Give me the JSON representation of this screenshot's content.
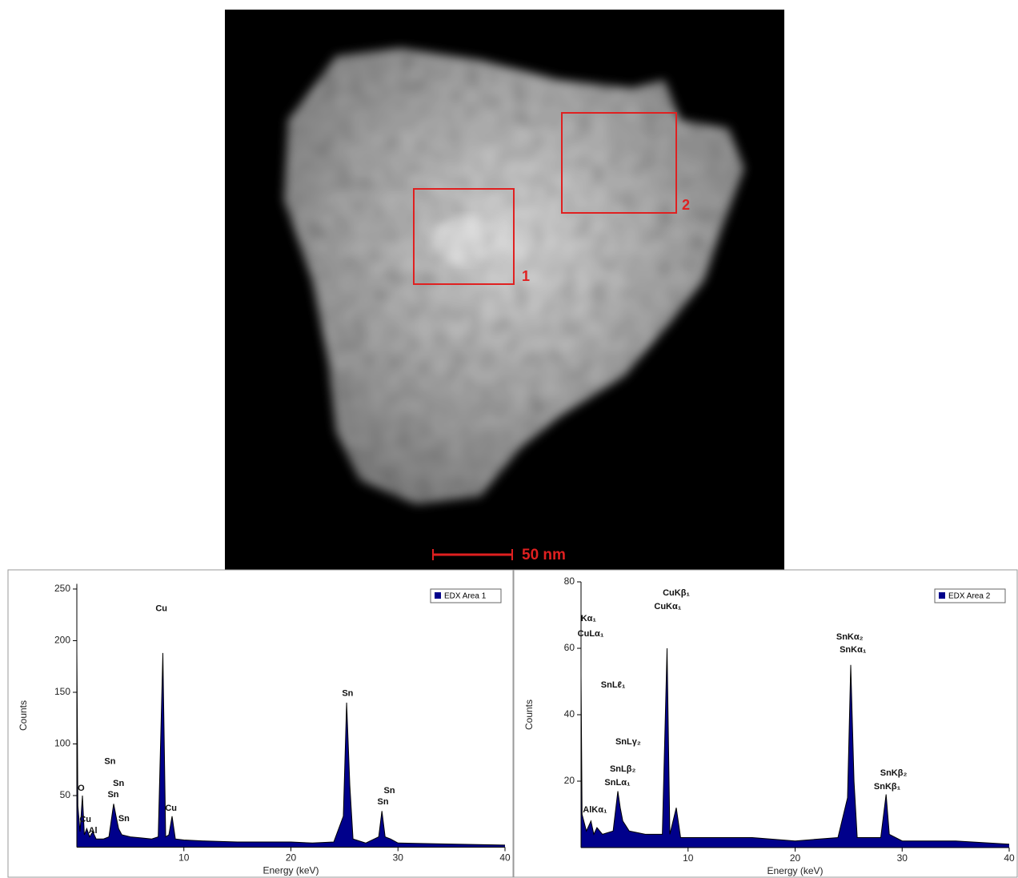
{
  "image": {
    "regions": [
      "1",
      "2"
    ],
    "scale_bar": "50 nm"
  },
  "chart_data": [
    {
      "type": "area",
      "xlabel": "Energy (keV)",
      "ylabel": "Counts",
      "x": [
        0.0,
        0.1,
        0.3,
        0.52,
        0.7,
        0.93,
        1.2,
        1.49,
        1.8,
        2.5,
        3.0,
        3.44,
        3.66,
        3.9,
        4.2,
        5,
        6,
        7,
        7.6,
        8.04,
        8.3,
        8.6,
        8.9,
        9.2,
        10,
        12,
        15,
        18,
        20,
        22,
        24,
        24.9,
        25.2,
        25.5,
        25.8,
        27,
        28.2,
        28.5,
        28.8,
        29.3,
        30,
        35,
        40
      ],
      "series": [
        {
          "name": "EDX Area 1",
          "color": "#00008b",
          "values": [
            190,
            40,
            15,
            50,
            12,
            18,
            10,
            15,
            8,
            8,
            10,
            42,
            30,
            18,
            12,
            10,
            9,
            8,
            10,
            188,
            10,
            12,
            30,
            8,
            7,
            6,
            5,
            5,
            5,
            4,
            5,
            30,
            140,
            60,
            8,
            4,
            10,
            35,
            10,
            8,
            4,
            3,
            2
          ]
        }
      ],
      "xlim": [
        0,
        40
      ],
      "ylim": [
        0,
        255
      ],
      "xticks": [
        10,
        20,
        30,
        40
      ],
      "yticks": [
        50,
        100,
        150,
        200,
        250
      ],
      "legend": "upper right",
      "annotations": [
        {
          "text": "Cu",
          "x": 7.9,
          "y": 231
        },
        {
          "text": "Sn",
          "x": 25.3,
          "y": 148.6
        },
        {
          "text": "Sn",
          "x": 3.1,
          "y": 83
        },
        {
          "text": "Sn",
          "x": 3.9,
          "y": 61.6
        },
        {
          "text": "Sn",
          "x": 3.4,
          "y": 50.8
        },
        {
          "text": "Sn",
          "x": 4.4,
          "y": 27.5
        },
        {
          "text": "O",
          "x": 0.4,
          "y": 57
        },
        {
          "text": "Cu",
          "x": 0.8,
          "y": 26.7
        },
        {
          "text": "Al",
          "x": 1.5,
          "y": 15.9
        },
        {
          "text": "Cu",
          "x": 8.8,
          "y": 37.6
        },
        {
          "text": "Sn",
          "x": 29.2,
          "y": 54.7
        },
        {
          "text": "Sn",
          "x": 28.6,
          "y": 43.8
        }
      ]
    },
    {
      "type": "area",
      "xlabel": "Energy (keV)",
      "ylabel": "Counts",
      "x": [
        0.0,
        0.1,
        0.5,
        0.93,
        1.2,
        1.49,
        2,
        3,
        3.44,
        3.66,
        3.9,
        4.5,
        6,
        7.6,
        8.04,
        8.3,
        8.9,
        9.3,
        12,
        16,
        20,
        24,
        24.9,
        25.2,
        25.5,
        25.8,
        28,
        28.5,
        28.8,
        30,
        35,
        40
      ],
      "series": [
        {
          "name": "EDX Area 2",
          "color": "#00008b",
          "values": [
            52,
            10,
            5,
            8,
            4,
            6,
            4,
            5,
            17,
            12,
            8,
            5,
            4,
            4,
            60,
            4,
            12,
            3,
            3,
            3,
            2,
            3,
            15,
            55,
            20,
            3,
            3,
            16,
            4,
            2,
            2,
            1
          ]
        }
      ],
      "xlim": [
        0,
        40
      ],
      "ylim": [
        0,
        80
      ],
      "xticks": [
        10,
        20,
        30,
        40
      ],
      "yticks": [
        20,
        40,
        60,
        80
      ],
      "legend": "upper right",
      "annotations": [
        {
          "text": "Kα₁",
          "x": 0.7,
          "y": 68.9
        },
        {
          "text": "CuLα₁",
          "x": 0.9,
          "y": 64.3
        },
        {
          "text": "SnLℓ₁",
          "x": 3.0,
          "y": 48.9
        },
        {
          "text": "SnLγ₂",
          "x": 4.4,
          "y": 31.8
        },
        {
          "text": "SnLβ₂",
          "x": 3.9,
          "y": 23.6
        },
        {
          "text": "SnLα₁",
          "x": 3.4,
          "y": 19.5
        },
        {
          "text": "AlKα₁",
          "x": 1.3,
          "y": 11.3
        },
        {
          "text": "CuKβ₁",
          "x": 8.9,
          "y": 76.6
        },
        {
          "text": "CuKα₁",
          "x": 8.1,
          "y": 72.5
        },
        {
          "text": "SnKα₂",
          "x": 25.1,
          "y": 63.4
        },
        {
          "text": "SnKα₁",
          "x": 25.4,
          "y": 59.5
        },
        {
          "text": "SnKβ₂",
          "x": 29.2,
          "y": 22.4
        },
        {
          "text": "SnKβ₁",
          "x": 28.6,
          "y": 18.3
        }
      ]
    }
  ]
}
